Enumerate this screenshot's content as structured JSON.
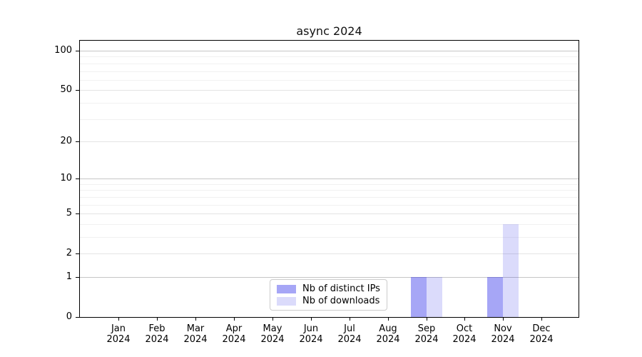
{
  "figure": {
    "title": "async 2024"
  },
  "chart_data": {
    "type": "bar",
    "title": "async 2024",
    "xlabel": "",
    "ylabel": "",
    "categories": [
      "Jan 2024",
      "Feb 2024",
      "Mar 2024",
      "Apr 2024",
      "May 2024",
      "Jun 2024",
      "Jul 2024",
      "Aug 2024",
      "Sep 2024",
      "Oct 2024",
      "Nov 2024",
      "Dec 2024"
    ],
    "series": [
      {
        "name": "Nb of distinct IPs",
        "fill": "rgba(0,0,230,0.35)",
        "hex_on_white": "#a6a6f6",
        "values": [
          0,
          0,
          0,
          0,
          0,
          0,
          0,
          0,
          1,
          0,
          1,
          0
        ]
      },
      {
        "name": "Nb of downloads",
        "fill": "rgba(0,0,230,0.14)",
        "hex_on_white": "#dcdcf9",
        "values": [
          0,
          0,
          0,
          0,
          0,
          0,
          0,
          0,
          1,
          0,
          4,
          0
        ]
      }
    ],
    "yscale": "log1p",
    "ylim": [
      0,
      120
    ],
    "y_tick_labels": [
      "0",
      "1",
      "2",
      "5",
      "10",
      "20",
      "50",
      "100"
    ],
    "y_tick_values": [
      0,
      1,
      2,
      5,
      10,
      20,
      50,
      100
    ],
    "y_decade_gridline_values": [
      1,
      10,
      100
    ],
    "y_minor_gridline_values": [
      3,
      4,
      6,
      7,
      8,
      9,
      30,
      40,
      60,
      70,
      80,
      90
    ],
    "grid": true,
    "legend_position": "lower center"
  }
}
